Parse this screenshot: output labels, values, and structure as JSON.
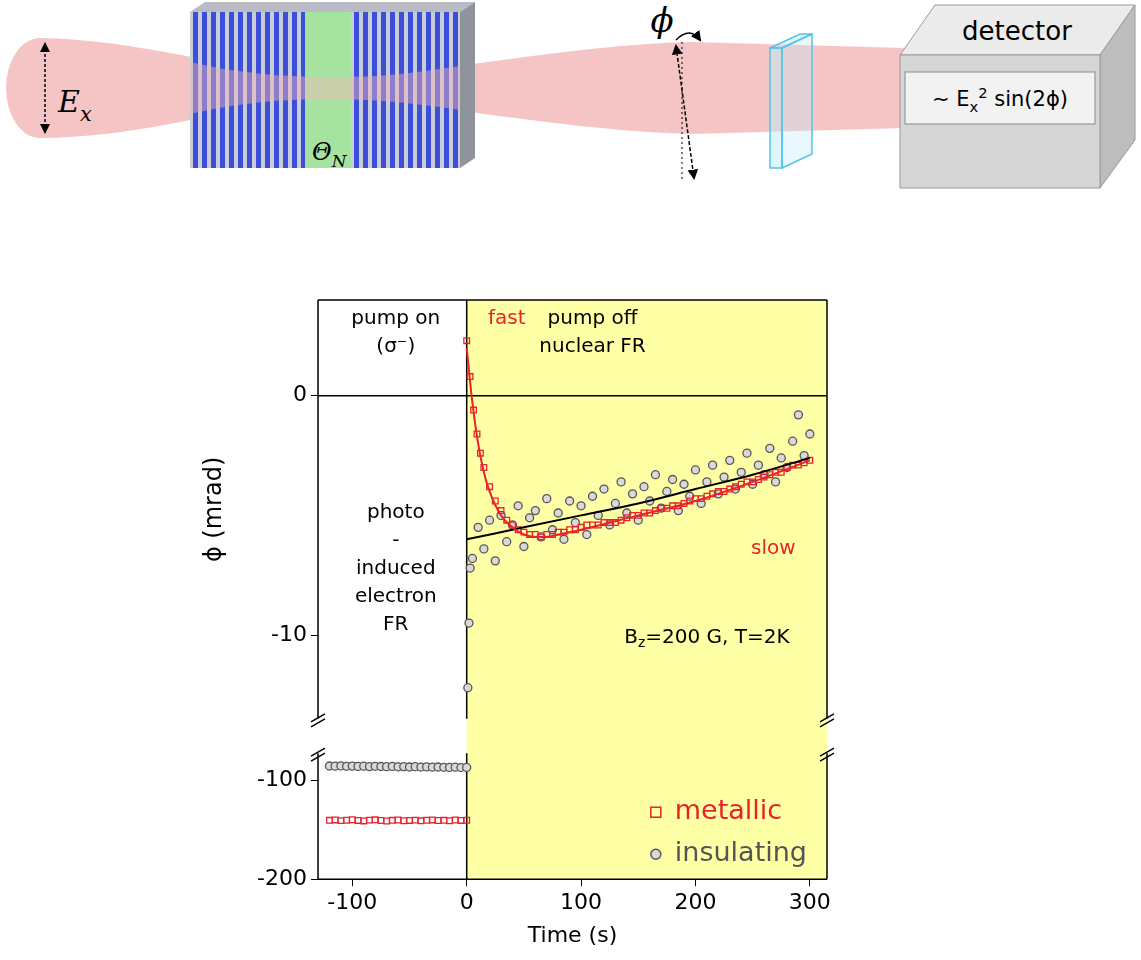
{
  "diagram": {
    "field_label": [
      {
        "text": "E"
      },
      {
        "text": "x",
        "subscript": true
      }
    ],
    "layer_label": [
      {
        "text": "Θ"
      },
      {
        "text": "N",
        "subscript": true
      }
    ],
    "rotation_label": "ϕ",
    "detector": {
      "title": "detector",
      "signal": [
        {
          "text": "∼ E"
        },
        {
          "text": "x",
          "subscript": true
        },
        {
          "text": "2",
          "superscript": true
        },
        {
          "text": " sin(2ϕ)"
        }
      ]
    }
  },
  "chart_data": [
    {
      "type": "scatter",
      "ylabel": "ϕ (mrad)",
      "xlim": [
        -130,
        315
      ],
      "xticks": [
        -100,
        0,
        100,
        200,
        300
      ],
      "ylim": [
        -13.5,
        4
      ],
      "yticks": [
        -10,
        0
      ],
      "grid": false,
      "tick_labels": "y",
      "annotations": [
        {
          "lines": [
            "pump on",
            "(σ⁻)"
          ]
        },
        {
          "lines": [
            "fast"
          ],
          "color": "#e8232b"
        },
        {
          "lines": [
            "pump off",
            "nuclear FR"
          ]
        },
        {
          "lines": [
            "photo",
            "-",
            "induced",
            "electron",
            "FR"
          ]
        },
        {
          "lines": [
            "slow"
          ],
          "color": "#e8232b"
        },
        {
          "lines": [
            [
              {
                "text": "B"
              },
              {
                "text": "z",
                "subscript": true
              },
              {
                "text": "=200 G, T=2K"
              }
            ]
          ]
        }
      ],
      "series": [
        {
          "name": "metallic",
          "color": "#e8232b",
          "marker": "square",
          "x": [
            0,
            3,
            6,
            9,
            12,
            15,
            20,
            25,
            30,
            35,
            40,
            45,
            50,
            55,
            60,
            65,
            70,
            75,
            80,
            85,
            90,
            95,
            100,
            105,
            110,
            115,
            120,
            125,
            130,
            135,
            140,
            145,
            150,
            155,
            160,
            165,
            170,
            175,
            180,
            185,
            190,
            195,
            200,
            205,
            210,
            215,
            220,
            225,
            230,
            235,
            240,
            245,
            250,
            255,
            260,
            265,
            270,
            275,
            280,
            285,
            290,
            295,
            300
          ],
          "values": [
            2.3,
            0.8,
            -0.6,
            -1.6,
            -2.4,
            -3.0,
            -3.8,
            -4.4,
            -4.8,
            -5.2,
            -5.4,
            -5.6,
            -5.7,
            -5.8,
            -5.8,
            -5.9,
            -5.8,
            -5.8,
            -5.7,
            -5.7,
            -5.6,
            -5.6,
            -5.5,
            -5.4,
            -5.4,
            -5.4,
            -5.3,
            -5.3,
            -5.3,
            -5.2,
            -5.1,
            -5.0,
            -5.0,
            -4.9,
            -4.9,
            -4.8,
            -4.7,
            -4.7,
            -4.6,
            -4.6,
            -4.5,
            -4.4,
            -4.3,
            -4.3,
            -4.2,
            -4.1,
            -4.0,
            -4.0,
            -3.9,
            -3.8,
            -3.7,
            -3.6,
            -3.6,
            -3.5,
            -3.4,
            -3.3,
            -3.2,
            -3.2,
            -3.0,
            -2.9,
            -2.9,
            -2.8,
            -2.7
          ]
        },
        {
          "name": "insulating",
          "color": "#555555",
          "marker": "circle",
          "x": [
            1,
            2,
            3,
            5,
            10,
            15,
            20,
            25,
            30,
            35,
            40,
            45,
            50,
            55,
            60,
            65,
            70,
            75,
            80,
            85,
            90,
            95,
            100,
            105,
            110,
            115,
            120,
            125,
            130,
            135,
            140,
            145,
            150,
            155,
            160,
            165,
            170,
            175,
            180,
            185,
            190,
            195,
            200,
            205,
            210,
            215,
            220,
            225,
            230,
            235,
            240,
            245,
            250,
            255,
            260,
            265,
            270,
            275,
            280,
            285,
            290,
            295,
            300
          ],
          "values": [
            -12.2,
            -9.5,
            -7.2,
            -6.8,
            -5.5,
            -6.4,
            -5.2,
            -6.9,
            -5.0,
            -6.1,
            -5.4,
            -4.6,
            -6.3,
            -5.1,
            -4.8,
            -5.9,
            -4.3,
            -5.6,
            -4.9,
            -6.0,
            -4.4,
            -5.3,
            -4.6,
            -5.8,
            -4.2,
            -5.0,
            -3.9,
            -5.4,
            -4.5,
            -3.6,
            -4.9,
            -4.1,
            -5.2,
            -3.8,
            -4.4,
            -3.3,
            -4.7,
            -4.0,
            -3.5,
            -4.8,
            -3.7,
            -4.2,
            -3.1,
            -4.5,
            -3.6,
            -2.9,
            -4.1,
            -3.4,
            -2.7,
            -3.9,
            -3.2,
            -2.4,
            -3.7,
            -2.9,
            -3.3,
            -2.2,
            -3.6,
            -2.6,
            -3.0,
            -1.9,
            -0.8,
            -2.5,
            -1.6
          ]
        },
        {
          "type": "line",
          "color": "#e8232b",
          "marker": "none",
          "line_style": "solid",
          "x": [
            0,
            5,
            10,
            15,
            20,
            30,
            40,
            50,
            60,
            70,
            80,
            100,
            150,
            200,
            250,
            300
          ],
          "values": [
            2.0,
            -0.3,
            -2.0,
            -3.2,
            -4.0,
            -5.0,
            -5.5,
            -5.8,
            -5.9,
            -5.9,
            -5.8,
            -5.6,
            -5.0,
            -4.4,
            -3.6,
            -2.7
          ]
        },
        {
          "type": "line",
          "color": "#000000",
          "marker": "none",
          "line_style": "solid",
          "x": [
            0,
            50,
            100,
            150,
            200,
            250,
            300
          ],
          "values": [
            -6.0,
            -5.5,
            -5.0,
            -4.5,
            -3.9,
            -3.3,
            -2.6
          ]
        }
      ]
    },
    {
      "type": "scatter",
      "xlabel": "Time (s)",
      "xlim": [
        -130,
        315
      ],
      "xticks": [
        -100,
        0,
        100,
        200,
        300
      ],
      "ylim": [
        -200,
        -72
      ],
      "yticks": [
        -200,
        -100
      ],
      "grid": false,
      "legend": "lower right",
      "series": [
        {
          "name": "metallic",
          "color": "#e8232b",
          "marker": "square",
          "x": [
            -120,
            -115,
            -110,
            -105,
            -100,
            -95,
            -90,
            -85,
            -80,
            -75,
            -70,
            -65,
            -60,
            -55,
            -50,
            -45,
            -40,
            -35,
            -30,
            -25,
            -20,
            -15,
            -10,
            -5,
            0
          ],
          "values": [
            -140.2,
            -139.8,
            -140.5,
            -140.1,
            -139.6,
            -140.3,
            -140.8,
            -140.0,
            -139.7,
            -140.4,
            -140.9,
            -140.2,
            -139.9,
            -140.6,
            -140.3,
            -140.0,
            -140.7,
            -140.1,
            -139.8,
            -140.4,
            -140.2,
            -140.6,
            -139.9,
            -140.3,
            -140.1
          ]
        },
        {
          "name": "insulating",
          "color": "#555555",
          "marker": "circle",
          "x": [
            -120,
            -115,
            -110,
            -105,
            -100,
            -95,
            -90,
            -85,
            -80,
            -75,
            -70,
            -65,
            -60,
            -55,
            -50,
            -45,
            -40,
            -35,
            -30,
            -25,
            -20,
            -15,
            -10,
            -5,
            0
          ],
          "values": [
            -85.0,
            -85.2,
            -84.9,
            -85.3,
            -85.1,
            -85.4,
            -85.2,
            -85.6,
            -85.3,
            -85.5,
            -85.7,
            -85.4,
            -85.8,
            -85.6,
            -86.0,
            -85.7,
            -86.1,
            -85.9,
            -86.2,
            -86.0,
            -86.3,
            -86.4,
            -86.2,
            -86.6,
            -86.5
          ]
        }
      ]
    }
  ]
}
